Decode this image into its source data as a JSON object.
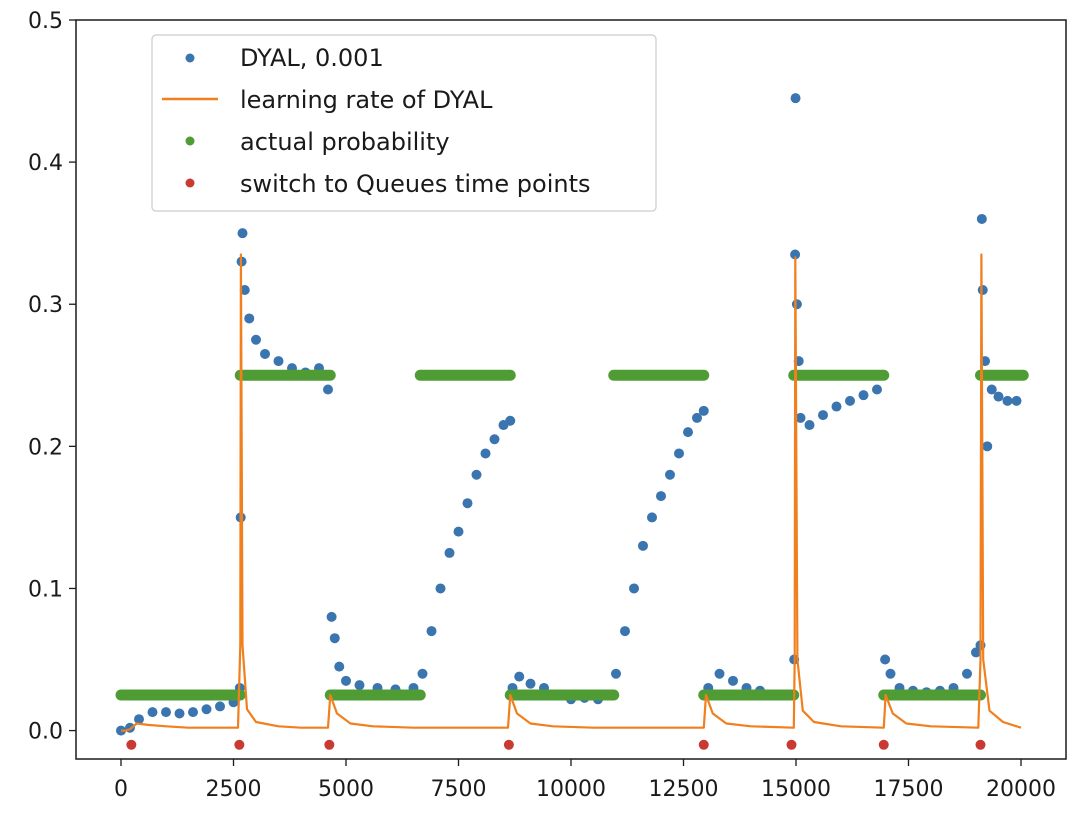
{
  "chart_data": {
    "type": "scatter",
    "title": "",
    "xlabel": "",
    "ylabel": "",
    "xlim": [
      -1000,
      21000
    ],
    "ylim": [
      -0.02,
      0.5
    ],
    "x_ticks": [
      0,
      2500,
      5000,
      7500,
      10000,
      12500,
      15000,
      17500,
      20000
    ],
    "y_ticks": [
      0.0,
      0.1,
      0.2,
      0.3,
      0.4,
      0.5
    ],
    "legend_position": "upper-left",
    "grid": false,
    "series": [
      {
        "name": "DYAL, 0.001",
        "kind": "markers",
        "color": "#3a75b0",
        "points": [
          [
            0,
            0.0
          ],
          [
            200,
            0.002
          ],
          [
            400,
            0.008
          ],
          [
            700,
            0.013
          ],
          [
            1000,
            0.013
          ],
          [
            1300,
            0.012
          ],
          [
            1600,
            0.013
          ],
          [
            1900,
            0.015
          ],
          [
            2200,
            0.017
          ],
          [
            2500,
            0.02
          ],
          [
            2640,
            0.03
          ],
          [
            2660,
            0.15
          ],
          [
            2680,
            0.33
          ],
          [
            2700,
            0.35
          ],
          [
            2750,
            0.31
          ],
          [
            2850,
            0.29
          ],
          [
            3000,
            0.275
          ],
          [
            3200,
            0.265
          ],
          [
            3500,
            0.26
          ],
          [
            3800,
            0.255
          ],
          [
            4100,
            0.252
          ],
          [
            4400,
            0.255
          ],
          [
            4600,
            0.24
          ],
          [
            4680,
            0.08
          ],
          [
            4750,
            0.065
          ],
          [
            4850,
            0.045
          ],
          [
            5000,
            0.035
          ],
          [
            5300,
            0.032
          ],
          [
            5700,
            0.03
          ],
          [
            6100,
            0.029
          ],
          [
            6500,
            0.03
          ],
          [
            6700,
            0.04
          ],
          [
            6900,
            0.07
          ],
          [
            7100,
            0.1
          ],
          [
            7300,
            0.125
          ],
          [
            7500,
            0.14
          ],
          [
            7700,
            0.16
          ],
          [
            7900,
            0.18
          ],
          [
            8100,
            0.195
          ],
          [
            8300,
            0.205
          ],
          [
            8500,
            0.215
          ],
          [
            8650,
            0.218
          ],
          [
            8700,
            0.03
          ],
          [
            8850,
            0.038
          ],
          [
            9100,
            0.033
          ],
          [
            9400,
            0.03
          ],
          [
            9700,
            0.025
          ],
          [
            10000,
            0.022
          ],
          [
            10300,
            0.023
          ],
          [
            10600,
            0.022
          ],
          [
            10900,
            0.025
          ],
          [
            11000,
            0.04
          ],
          [
            11200,
            0.07
          ],
          [
            11400,
            0.1
          ],
          [
            11600,
            0.13
          ],
          [
            11800,
            0.15
          ],
          [
            12000,
            0.165
          ],
          [
            12200,
            0.18
          ],
          [
            12400,
            0.195
          ],
          [
            12600,
            0.21
          ],
          [
            12800,
            0.22
          ],
          [
            12950,
            0.225
          ],
          [
            13050,
            0.03
          ],
          [
            13300,
            0.04
          ],
          [
            13600,
            0.035
          ],
          [
            13900,
            0.03
          ],
          [
            14200,
            0.028
          ],
          [
            14500,
            0.025
          ],
          [
            14800,
            0.025
          ],
          [
            14960,
            0.05
          ],
          [
            14980,
            0.335
          ],
          [
            14990,
            0.445
          ],
          [
            15020,
            0.3
          ],
          [
            15060,
            0.26
          ],
          [
            15100,
            0.22
          ],
          [
            15300,
            0.215
          ],
          [
            15600,
            0.222
          ],
          [
            15900,
            0.228
          ],
          [
            16200,
            0.232
          ],
          [
            16500,
            0.236
          ],
          [
            16800,
            0.24
          ],
          [
            16980,
            0.05
          ],
          [
            17100,
            0.04
          ],
          [
            17300,
            0.03
          ],
          [
            17600,
            0.028
          ],
          [
            17900,
            0.027
          ],
          [
            18200,
            0.028
          ],
          [
            18500,
            0.03
          ],
          [
            18800,
            0.04
          ],
          [
            19000,
            0.055
          ],
          [
            19100,
            0.06
          ],
          [
            19130,
            0.36
          ],
          [
            19150,
            0.31
          ],
          [
            19200,
            0.26
          ],
          [
            19250,
            0.2
          ],
          [
            19350,
            0.24
          ],
          [
            19500,
            0.235
          ],
          [
            19700,
            0.232
          ],
          [
            19900,
            0.232
          ]
        ]
      },
      {
        "name": "learning rate of DYAL",
        "kind": "line",
        "color": "#f07f1e",
        "points": [
          [
            0,
            0.0
          ],
          [
            100,
            0.0
          ],
          [
            200,
            0.001
          ],
          [
            350,
            0.005
          ],
          [
            600,
            0.004
          ],
          [
            1000,
            0.003
          ],
          [
            1500,
            0.002
          ],
          [
            2000,
            0.002
          ],
          [
            2600,
            0.002
          ],
          [
            2650,
            0.06
          ],
          [
            2665,
            0.335
          ],
          [
            2700,
            0.06
          ],
          [
            2800,
            0.015
          ],
          [
            3000,
            0.006
          ],
          [
            3500,
            0.003
          ],
          [
            4000,
            0.002
          ],
          [
            4600,
            0.002
          ],
          [
            4650,
            0.025
          ],
          [
            4800,
            0.012
          ],
          [
            5100,
            0.005
          ],
          [
            5600,
            0.003
          ],
          [
            6500,
            0.002
          ],
          [
            8600,
            0.002
          ],
          [
            8650,
            0.025
          ],
          [
            8800,
            0.012
          ],
          [
            9100,
            0.005
          ],
          [
            9600,
            0.003
          ],
          [
            10500,
            0.002
          ],
          [
            12950,
            0.002
          ],
          [
            13000,
            0.025
          ],
          [
            13150,
            0.012
          ],
          [
            13450,
            0.005
          ],
          [
            14000,
            0.003
          ],
          [
            14950,
            0.002
          ],
          [
            14970,
            0.05
          ],
          [
            14985,
            0.333
          ],
          [
            15030,
            0.05
          ],
          [
            15150,
            0.014
          ],
          [
            15400,
            0.006
          ],
          [
            16000,
            0.003
          ],
          [
            16950,
            0.002
          ],
          [
            16990,
            0.025
          ],
          [
            17150,
            0.012
          ],
          [
            17450,
            0.005
          ],
          [
            18000,
            0.003
          ],
          [
            19050,
            0.002
          ],
          [
            19100,
            0.05
          ],
          [
            19120,
            0.335
          ],
          [
            19160,
            0.05
          ],
          [
            19300,
            0.014
          ],
          [
            19600,
            0.006
          ],
          [
            20000,
            0.002
          ]
        ]
      },
      {
        "name": "actual probability",
        "kind": "markers",
        "color": "#4e9c33",
        "segments": [
          {
            "x_start": 0,
            "x_end": 2650,
            "y": 0.025
          },
          {
            "x_start": 2650,
            "x_end": 4650,
            "y": 0.25
          },
          {
            "x_start": 4650,
            "x_end": 6650,
            "y": 0.025
          },
          {
            "x_start": 6650,
            "x_end": 8650,
            "y": 0.25
          },
          {
            "x_start": 8650,
            "x_end": 10950,
            "y": 0.025
          },
          {
            "x_start": 10950,
            "x_end": 12950,
            "y": 0.25
          },
          {
            "x_start": 12950,
            "x_end": 14950,
            "y": 0.025
          },
          {
            "x_start": 14950,
            "x_end": 16950,
            "y": 0.25
          },
          {
            "x_start": 16950,
            "x_end": 19100,
            "y": 0.025
          },
          {
            "x_start": 19100,
            "x_end": 20050,
            "y": 0.25
          }
        ]
      },
      {
        "name": "switch to Queues time points",
        "kind": "markers",
        "color": "#c83a32",
        "points": [
          [
            230,
            -0.01
          ],
          [
            2630,
            -0.01
          ],
          [
            4630,
            -0.01
          ],
          [
            8620,
            -0.01
          ],
          [
            12950,
            -0.01
          ],
          [
            14900,
            -0.01
          ],
          [
            16950,
            -0.01
          ],
          [
            19100,
            -0.01
          ]
        ]
      }
    ]
  }
}
